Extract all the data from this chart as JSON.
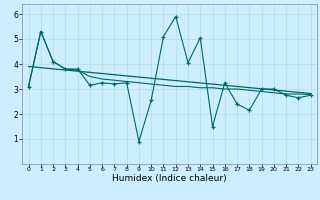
{
  "title": "",
  "xlabel": "Humidex (Indice chaleur)",
  "background_color": "#cceeff",
  "line_color": "#006666",
  "xlim": [
    -0.5,
    23.5
  ],
  "ylim": [
    0.0,
    6.4
  ],
  "yticks": [
    1,
    2,
    3,
    4,
    5,
    6
  ],
  "xticks": [
    0,
    1,
    2,
    3,
    4,
    5,
    6,
    7,
    8,
    9,
    10,
    11,
    12,
    13,
    14,
    15,
    16,
    17,
    18,
    19,
    20,
    21,
    22,
    23
  ],
  "x_data": [
    0,
    1,
    2,
    3,
    4,
    5,
    6,
    7,
    8,
    9,
    10,
    11,
    12,
    13,
    14,
    15,
    16,
    17,
    18,
    19,
    20,
    21,
    22,
    23
  ],
  "y_zigzag": [
    3.1,
    5.3,
    4.1,
    3.8,
    3.8,
    3.15,
    3.25,
    3.2,
    3.25,
    0.9,
    2.55,
    5.1,
    5.9,
    4.05,
    5.05,
    1.5,
    3.25,
    2.4,
    2.15,
    3.0,
    3.0,
    2.75,
    2.65,
    2.75
  ],
  "y_smooth": [
    3.1,
    5.3,
    4.1,
    3.8,
    3.75,
    3.5,
    3.4,
    3.35,
    3.3,
    3.25,
    3.2,
    3.15,
    3.1,
    3.1,
    3.05,
    3.05,
    3.0,
    3.0,
    2.95,
    2.9,
    2.85,
    2.8,
    2.8,
    2.78
  ],
  "y_trend_start": 3.9,
  "y_trend_end": 2.82,
  "grid_color": "#aaddcc",
  "spine_color": "#888888"
}
